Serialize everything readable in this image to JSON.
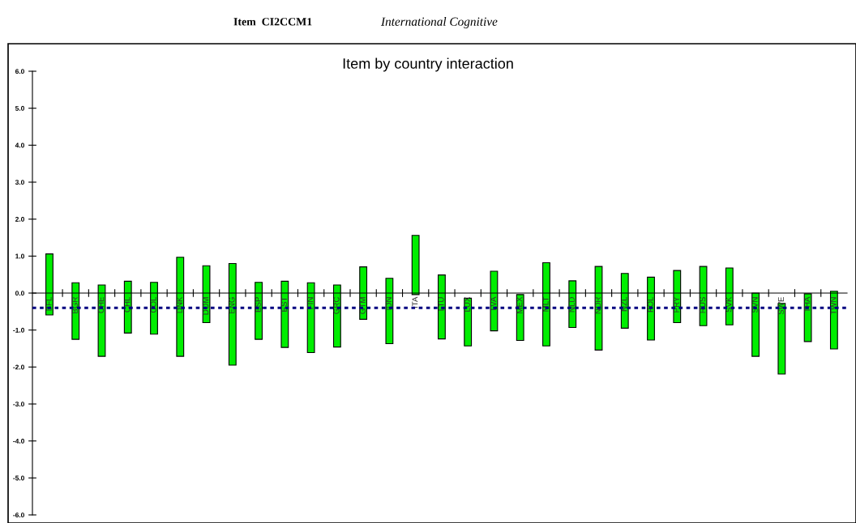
{
  "chart_data": {
    "type": "bar",
    "title": "Item by country interaction",
    "annotations": [
      "Item  CI2CCM1",
      "International Cognitive"
    ],
    "categories": [
      "BFL",
      "BGR",
      "CHE",
      "CHL",
      "COL",
      "DNK",
      "DOM",
      "ENG",
      "ESP",
      "EST",
      "FIN",
      "GRC",
      "GTM",
      "IDN",
      "ITA",
      "LTU",
      "LUX",
      "LVA",
      "MEX",
      "MLT",
      "NLD",
      "NOR",
      "NZL",
      "POL",
      "PRY",
      "RUS",
      "SVK",
      "SVN",
      "SWE",
      "THA",
      "TWN"
    ],
    "base": [
      -0.59,
      -1.25,
      -1.71,
      -1.08,
      -1.11,
      -1.71,
      -0.8,
      -1.95,
      -1.25,
      -1.47,
      -1.61,
      -1.46,
      -0.71,
      -1.37,
      -0.04,
      -1.24,
      -1.43,
      -1.02,
      -1.28,
      -1.43,
      -0.93,
      -1.54,
      -0.95,
      -1.27,
      -0.8,
      -0.88,
      -0.86,
      -1.71,
      -2.19,
      -1.31,
      -1.51
    ],
    "values": [
      1.65,
      1.53,
      1.93,
      1.4,
      1.4,
      2.68,
      1.54,
      2.75,
      1.54,
      1.79,
      1.89,
      1.68,
      1.42,
      1.77,
      1.6,
      1.73,
      1.29,
      1.61,
      1.24,
      2.25,
      1.26,
      2.26,
      1.48,
      1.7,
      1.41,
      1.6,
      1.54,
      1.71,
      1.91,
      1.29,
      1.56
    ],
    "color": "#00ee00",
    "ylim": [
      -6,
      6
    ],
    "yticks": [
      {
        "value": 6,
        "label": "6.0"
      },
      {
        "value": 5,
        "label": "5.0"
      },
      {
        "value": 4,
        "label": "4.0"
      },
      {
        "value": 3,
        "label": "3.0"
      },
      {
        "value": 2,
        "label": "2.0"
      },
      {
        "value": 1,
        "label": "1.0"
      },
      {
        "value": 0,
        "label": "0.0"
      },
      {
        "value": -1,
        "label": "-1.0"
      },
      {
        "value": -2,
        "label": "-2.0"
      },
      {
        "value": -3,
        "label": "-3.0"
      },
      {
        "value": -4,
        "label": "-4.0"
      },
      {
        "value": -5,
        "label": "-5.0"
      },
      {
        "value": -6,
        "label": "-6.0"
      }
    ],
    "ref_lines": [
      {
        "axis": "y",
        "value": -0.4,
        "color": "#000080",
        "line_style": "dotted"
      }
    ],
    "grid": false,
    "legend": false
  }
}
